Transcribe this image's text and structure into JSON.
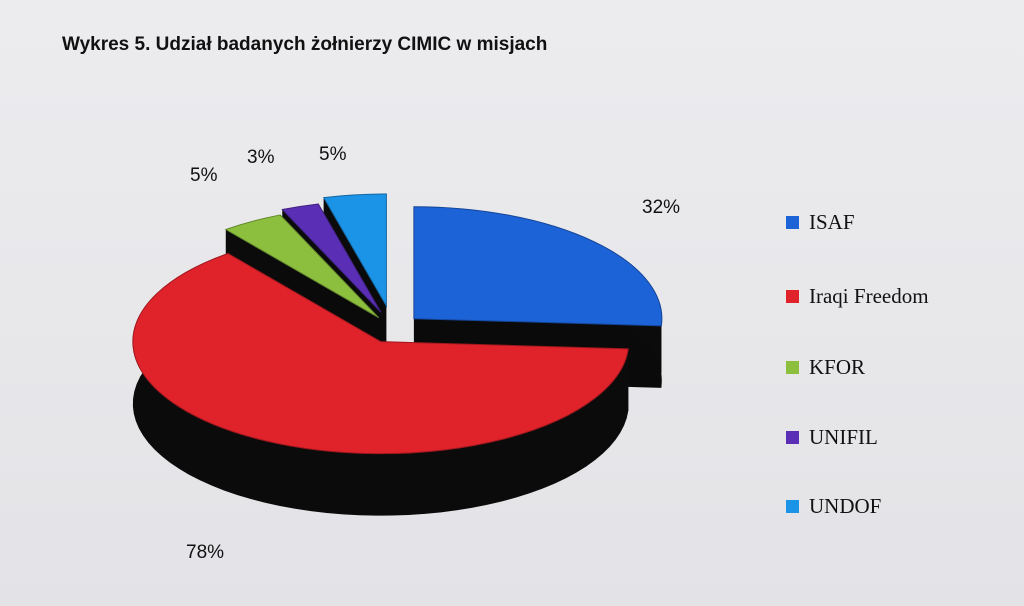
{
  "chart_data": {
    "type": "pie",
    "title": "Wykres 5. Udział badanych żołnierzy CIMIC w misjach",
    "categories": [
      "ISAF",
      "Iraqi Freedom",
      "KFOR",
      "UNIFIL",
      "UNDOF"
    ],
    "values": [
      32,
      78,
      5,
      3,
      5
    ],
    "value_labels": [
      "32%",
      "78%",
      "5%",
      "3%",
      "5%"
    ],
    "colors": [
      "#1d63d8",
      "#e0222b",
      "#8dbf3f",
      "#5a2fb6",
      "#1b93e6"
    ],
    "legend_position": "right",
    "style": "3d-exploded"
  }
}
